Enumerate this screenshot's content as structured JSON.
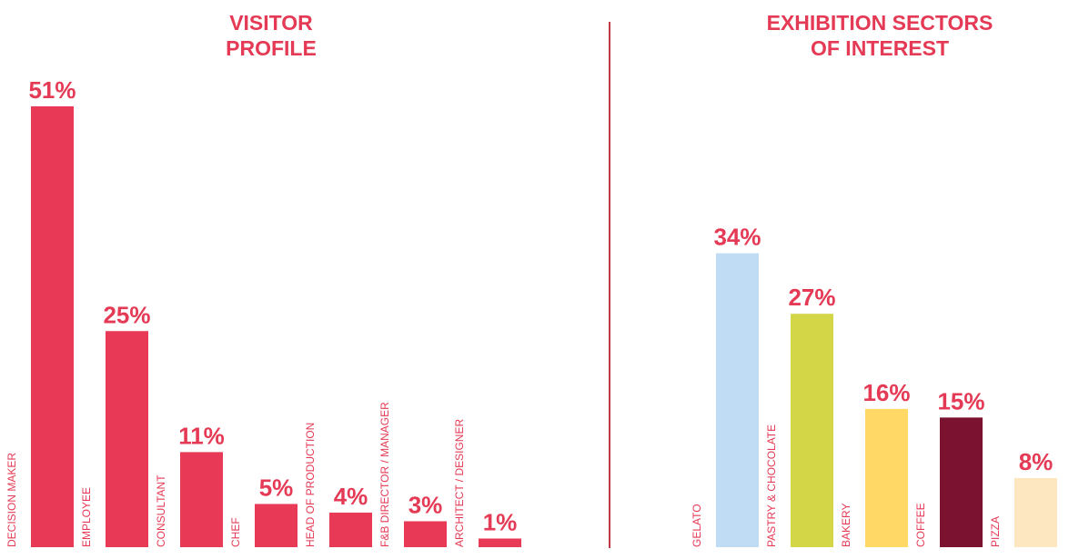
{
  "theme": {
    "accent": "#e53a55",
    "divider": "#c23a48"
  },
  "chart_data": [
    {
      "type": "bar",
      "title_lines": [
        "VISITOR",
        "PROFILE"
      ],
      "unit": "%",
      "categories": [
        "DECISION MAKER",
        "EMPLOYEE",
        "CONSULTANT",
        "CHEF",
        "HEAD OF PRODUCTION",
        "F&B DIRECTOR / MANAGER",
        "ARCHITECT / DESIGNER"
      ],
      "values": [
        51,
        25,
        11,
        5,
        4,
        3,
        1
      ],
      "value_labels": [
        "51%",
        "25%",
        "11%",
        "5%",
        "4%",
        "3%",
        "1%"
      ],
      "colors": [
        "#e83a56",
        "#e83a56",
        "#e83a56",
        "#e83a56",
        "#e83a56",
        "#e83a56",
        "#e83a56"
      ],
      "ylim": [
        0,
        51
      ],
      "grid": false,
      "legend": "none"
    },
    {
      "type": "bar",
      "title_lines": [
        "EXHIBITION SECTORS",
        "OF INTEREST"
      ],
      "unit": "%",
      "categories": [
        "GELATO",
        "PASTRY & CHOCOLATE",
        "BAKERY",
        "COFFEE",
        "PIZZA"
      ],
      "values": [
        34,
        27,
        16,
        15,
        8
      ],
      "value_labels": [
        "34%",
        "27%",
        "16%",
        "15%",
        "8%"
      ],
      "colors": [
        "#c0dcf4",
        "#d3d646",
        "#ffd865",
        "#7a1230",
        "#fde7c1"
      ],
      "ylim": [
        0,
        51
      ],
      "grid": false,
      "legend": "none"
    }
  ]
}
